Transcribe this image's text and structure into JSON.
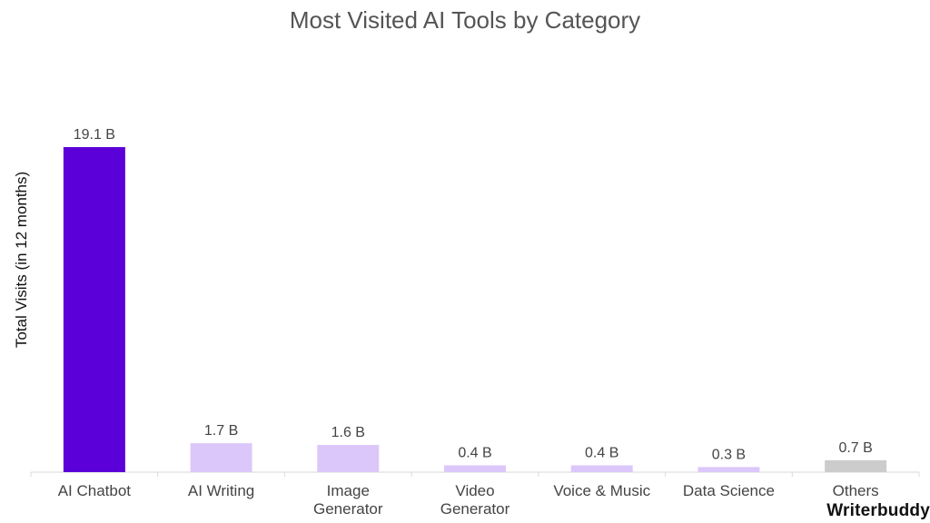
{
  "chart_data": {
    "type": "bar",
    "title": "Most Visited AI Tools by Category",
    "xlabel": "",
    "ylabel": "Total Visits (in 12 months)",
    "ylim": [
      0,
      19.1
    ],
    "grid": false,
    "categories": [
      "AI Chatbot",
      "AI Writing",
      "Image Generator",
      "Video Generator",
      "Voice & Music",
      "Data Science",
      "Others"
    ],
    "category_lines": [
      [
        "AI Chatbot"
      ],
      [
        "AI Writing"
      ],
      [
        "Image",
        "Generator"
      ],
      [
        "Video",
        "Generator"
      ],
      [
        "Voice & Music"
      ],
      [
        "Data Science"
      ],
      [
        "Others"
      ]
    ],
    "values": [
      19.1,
      1.7,
      1.6,
      0.4,
      0.4,
      0.3,
      0.7
    ],
    "data_labels": [
      "19.1 B",
      "1.7 B",
      "1.6 B",
      "0.4 B",
      "0.4 B",
      "0.3 B",
      "0.7 B"
    ],
    "bar_colors": [
      "#5b00d9",
      "#dcc7fb",
      "#dcc7fb",
      "#dcc7fb",
      "#dcc7fb",
      "#dcc7fb",
      "#cccccc"
    ],
    "axis_color": "#d9d9d9"
  },
  "brand": {
    "logo_text": "Writerbuddy"
  }
}
